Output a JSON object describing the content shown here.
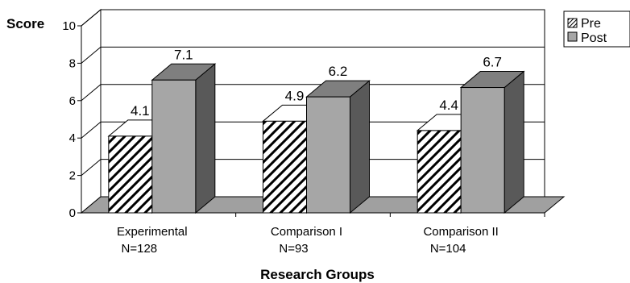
{
  "chart_data": {
    "type": "bar",
    "title": "",
    "ylabel": "Score",
    "xlabel": "Research Groups",
    "ylim": [
      0,
      10
    ],
    "yticks": [
      0,
      2,
      4,
      6,
      8,
      10
    ],
    "categories": [
      {
        "name": "Experimental",
        "n": "N=128"
      },
      {
        "name": "Comparison I",
        "n": "N=93"
      },
      {
        "name": "Comparison II",
        "n": "N=104"
      }
    ],
    "series": [
      {
        "name": "Pre",
        "values": [
          4.1,
          4.9,
          4.4
        ],
        "pattern": "diagonal-hatch",
        "color": "#ffffff"
      },
      {
        "name": "Post",
        "values": [
          7.1,
          6.2,
          6.7
        ],
        "pattern": "solid",
        "color": "#a6a6a6"
      }
    ],
    "legend_position": "top-right",
    "grid": true,
    "style": "3d-bar"
  }
}
